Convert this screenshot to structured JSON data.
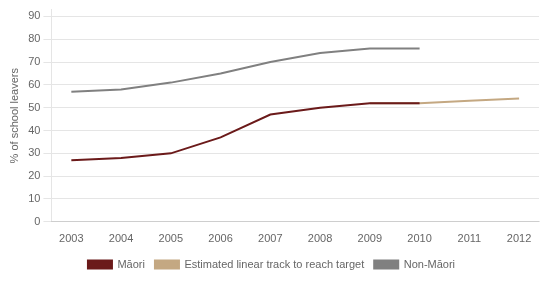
{
  "chart_data": {
    "type": "line",
    "y_label": "% of school leavers",
    "series": [
      {
        "name": "Māori",
        "color": "#6B1A1A",
        "x": [
          2003,
          2004,
          2005,
          2006,
          2007,
          2008,
          2009,
          2010
        ],
        "values": [
          27,
          28,
          30,
          37,
          47,
          50,
          52,
          52
        ]
      },
      {
        "name": "Estimated linear track to reach target",
        "color": "#C4A882",
        "x": [
          2009,
          2010,
          2011,
          2012
        ],
        "values": [
          52,
          52,
          53,
          54
        ]
      },
      {
        "name": "Non-Māori",
        "color": "#808080",
        "x": [
          2003,
          2004,
          2005,
          2006,
          2007,
          2008,
          2009,
          2010
        ],
        "values": [
          57,
          58,
          61,
          65,
          70,
          74,
          76,
          76
        ]
      }
    ],
    "xlim": [
      2002.6,
      2012.4
    ],
    "xticks": [
      2003,
      2004,
      2005,
      2006,
      2007,
      2008,
      2009,
      2010,
      2011,
      2012
    ],
    "ylim": [
      0,
      93
    ],
    "yticks": [
      0,
      10,
      20,
      30,
      40,
      50,
      60,
      70,
      80,
      90
    ],
    "grid": "y",
    "legend": "bottom"
  }
}
